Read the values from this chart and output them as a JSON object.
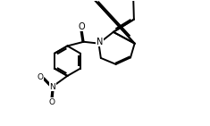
{
  "background_color": "#ffffff",
  "line_color": "#000000",
  "line_width": 1.4,
  "figure_width": 2.35,
  "figure_height": 1.41,
  "dpi": 100,
  "xlim": [
    0,
    10
  ],
  "ylim": [
    0,
    6
  ]
}
